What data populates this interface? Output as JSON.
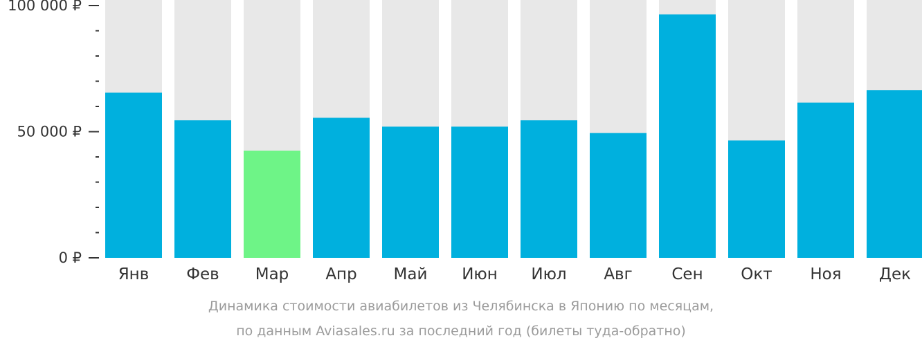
{
  "chart_data": {
    "type": "bar",
    "categories": [
      "Янв",
      "Фев",
      "Мар",
      "Апр",
      "Май",
      "Июн",
      "Июл",
      "Авг",
      "Сен",
      "Окт",
      "Ноя",
      "Дек"
    ],
    "values": [
      65500,
      54500,
      42500,
      55500,
      52000,
      52000,
      54500,
      49500,
      96500,
      46500,
      61500,
      66500
    ],
    "highlight_index": 2,
    "ylim": [
      0,
      100000
    ],
    "y_ticks": [
      {
        "value": 0,
        "label": "0 ₽"
      },
      {
        "value": 50000,
        "label": "50 000 ₽"
      },
      {
        "value": 100000,
        "label": "100 000 ₽"
      }
    ],
    "y_minor_step": 10000,
    "colors": {
      "bar": "#00b0de",
      "highlight": "#6ef487",
      "track": "#e8e8e8",
      "tick_text": "#333333",
      "category_text": "#333333",
      "caption_text": "#9b9b9b"
    },
    "grid": false,
    "legend": "none"
  },
  "caption": {
    "line1": "Динамика стоимости авиабилетов из Челябинска в Японию по месяцам,",
    "line2": "по данным Aviasales.ru за последний год (билеты туда-обратно)"
  }
}
